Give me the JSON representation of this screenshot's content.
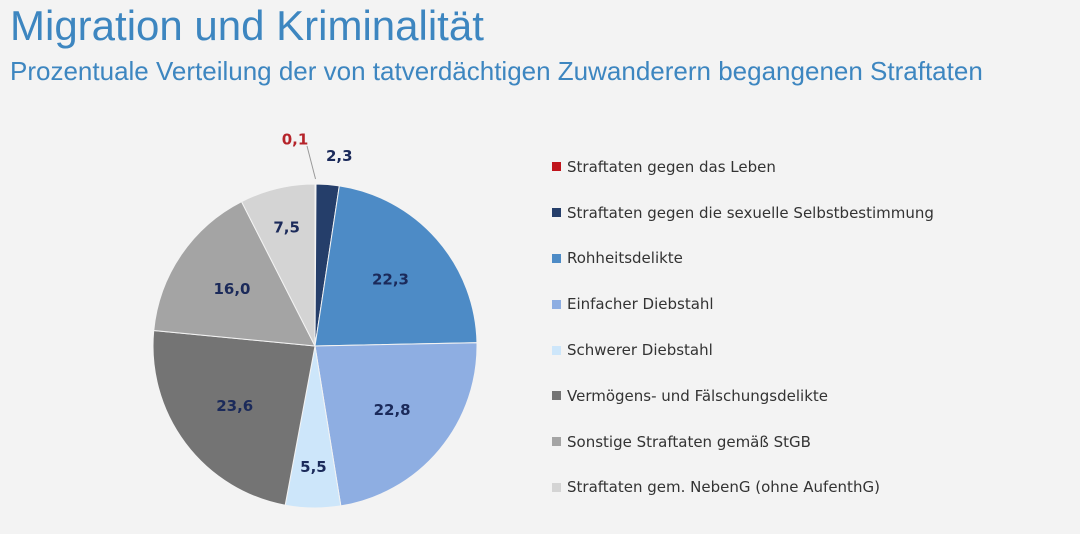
{
  "header": {
    "title": "Migration und Kriminalität",
    "subtitle": "Prozentuale Verteilung der von tatverdächtigen Zuwanderern begangenen Straftaten"
  },
  "chart_data": {
    "type": "pie",
    "title": "Migration und Kriminalität",
    "subtitle": "Prozentuale Verteilung der von tatverdächtigen Zuwanderern begangenen Straftaten",
    "legend_position": "right",
    "slices": [
      {
        "label": "Straftaten gegen das Leben",
        "value": 0.1,
        "value_label": "0,1",
        "color": "#c0141c",
        "label_color": "#b5232a"
      },
      {
        "label": "Straftaten gegen die sexuelle Selbstbestimmung",
        "value": 2.3,
        "value_label": "2,3",
        "color": "#253e6a",
        "label_color": "#1b2a5a"
      },
      {
        "label": "Rohheitsdelikte",
        "value": 22.3,
        "value_label": "22,3",
        "color": "#4d8bc6",
        "label_color": "#1b2a5a"
      },
      {
        "label": "Einfacher Diebstahl",
        "value": 22.8,
        "value_label": "22,8",
        "color": "#8eaee2",
        "label_color": "#1b2a5a"
      },
      {
        "label": "Schwerer Diebstahl",
        "value": 5.5,
        "value_label": "5,5",
        "color": "#cde6fa",
        "label_color": "#1b2a5a"
      },
      {
        "label": "Vermögens- und Fälschungsdelikte",
        "value": 23.6,
        "value_label": "23,6",
        "color": "#747474",
        "label_color": "#1b2a5a"
      },
      {
        "label": "Sonstige Straftaten gemäß StGB",
        "value": 16.0,
        "value_label": "16,0",
        "color": "#a4a4a4",
        "label_color": "#1b2a5a"
      },
      {
        "label": "Straftaten gem. NebenG (ohne AufenthG)",
        "value": 7.5,
        "value_label": "7,5",
        "color": "#d4d4d4",
        "label_color": "#1b2a5a"
      }
    ]
  }
}
